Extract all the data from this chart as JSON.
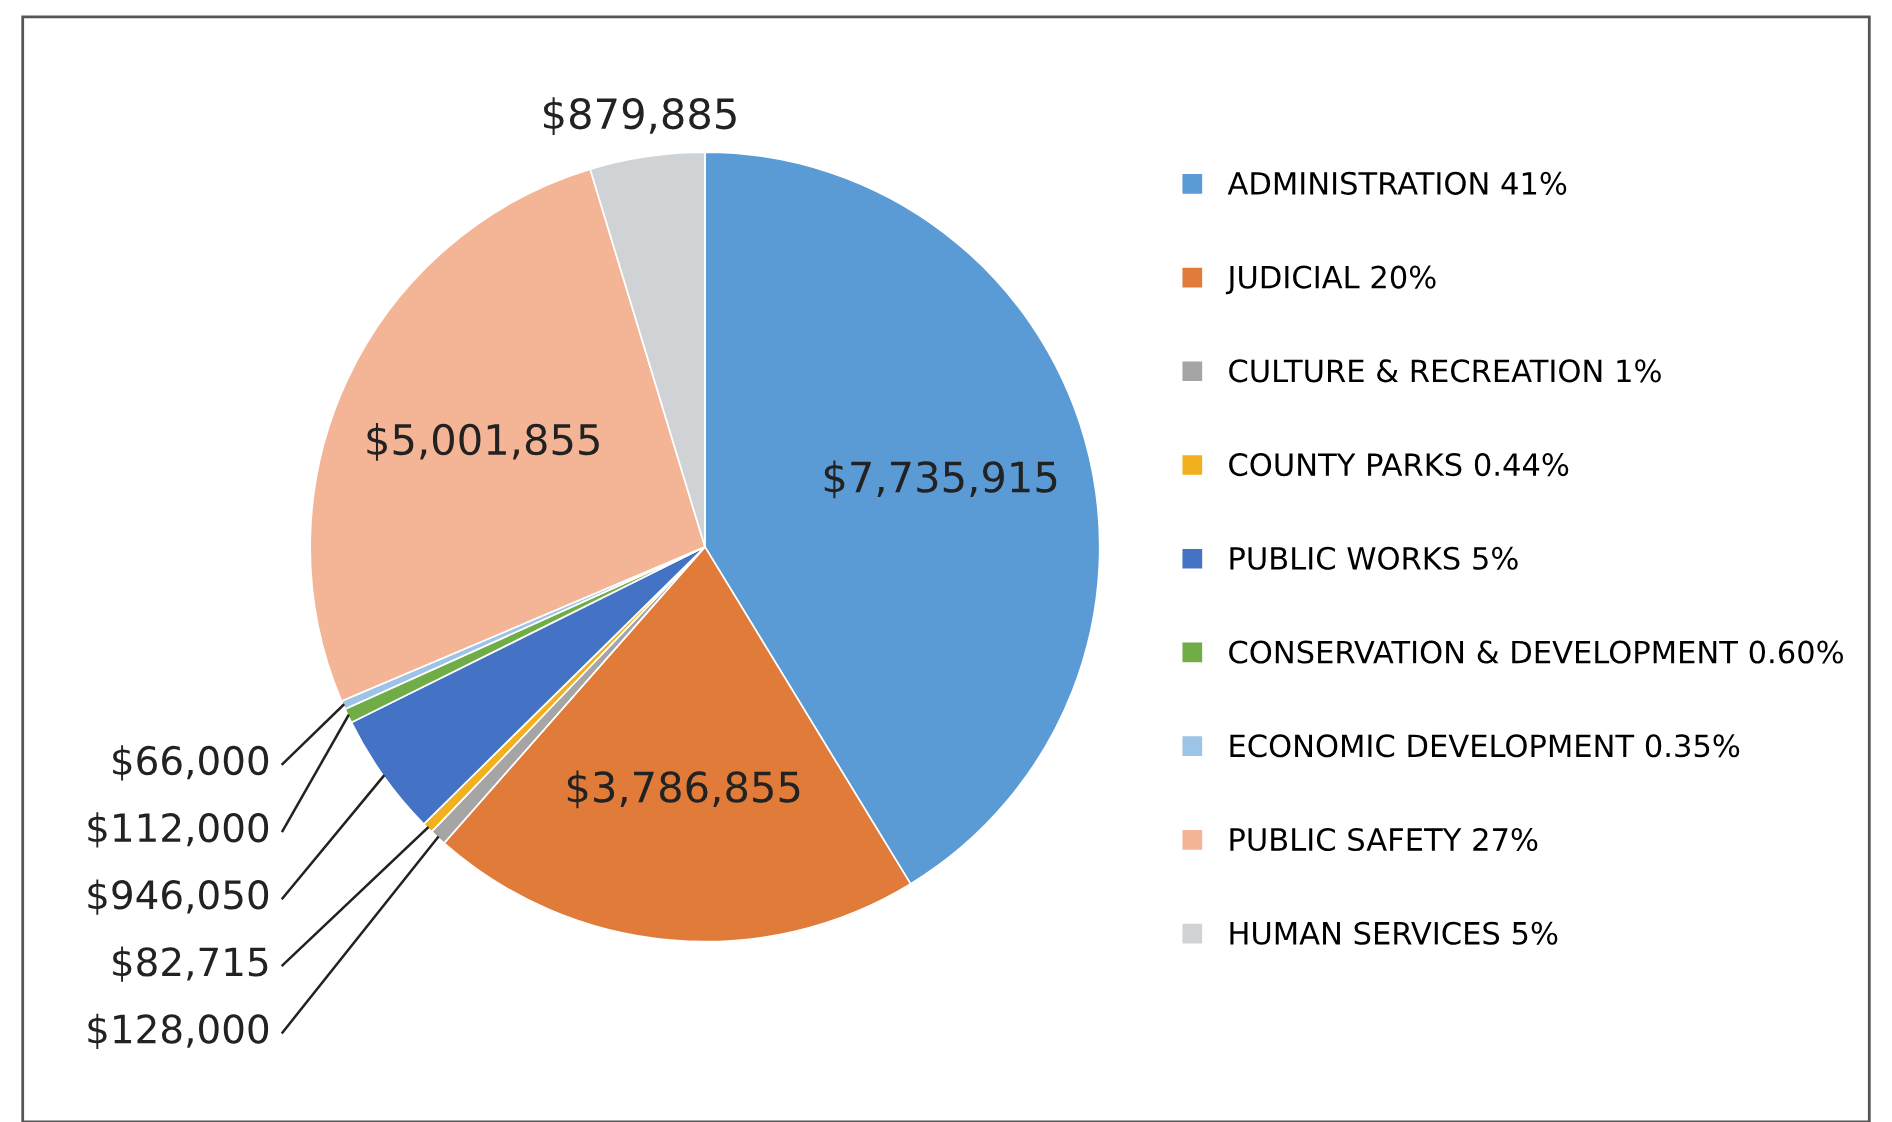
{
  "chart_data": {
    "type": "pie",
    "categories": [
      "ADMINISTRATION 41%",
      "JUDICIAL 20%",
      "CULTURE & RECREATION 1%",
      "COUNTY PARKS 0.44%",
      "PUBLIC WORKS 5%",
      "CONSERVATION & DEVELOPMENT 0.60%",
      "ECONOMIC DEVELOPMENT 0.35%",
      "PUBLIC SAFETY 27%",
      "HUMAN SERVICES 5%"
    ],
    "values": [
      7735915,
      3786855,
      128000,
      82715,
      946050,
      112000,
      66000,
      5001855,
      879885
    ],
    "value_labels": [
      "$7,735,915",
      "$3,786,855",
      "$128,000",
      "$82,715",
      "$946,050",
      "$112,000",
      "$66,000",
      "$5,001,855",
      "$879,885"
    ],
    "colors": [
      "#5b9bd5",
      "#e07b39",
      "#a5a5a5",
      "#f2b01e",
      "#4472c4",
      "#70ad47",
      "#9dc3e6",
      "#f4b496",
      "#d0d3d6"
    ],
    "legend": "right"
  }
}
